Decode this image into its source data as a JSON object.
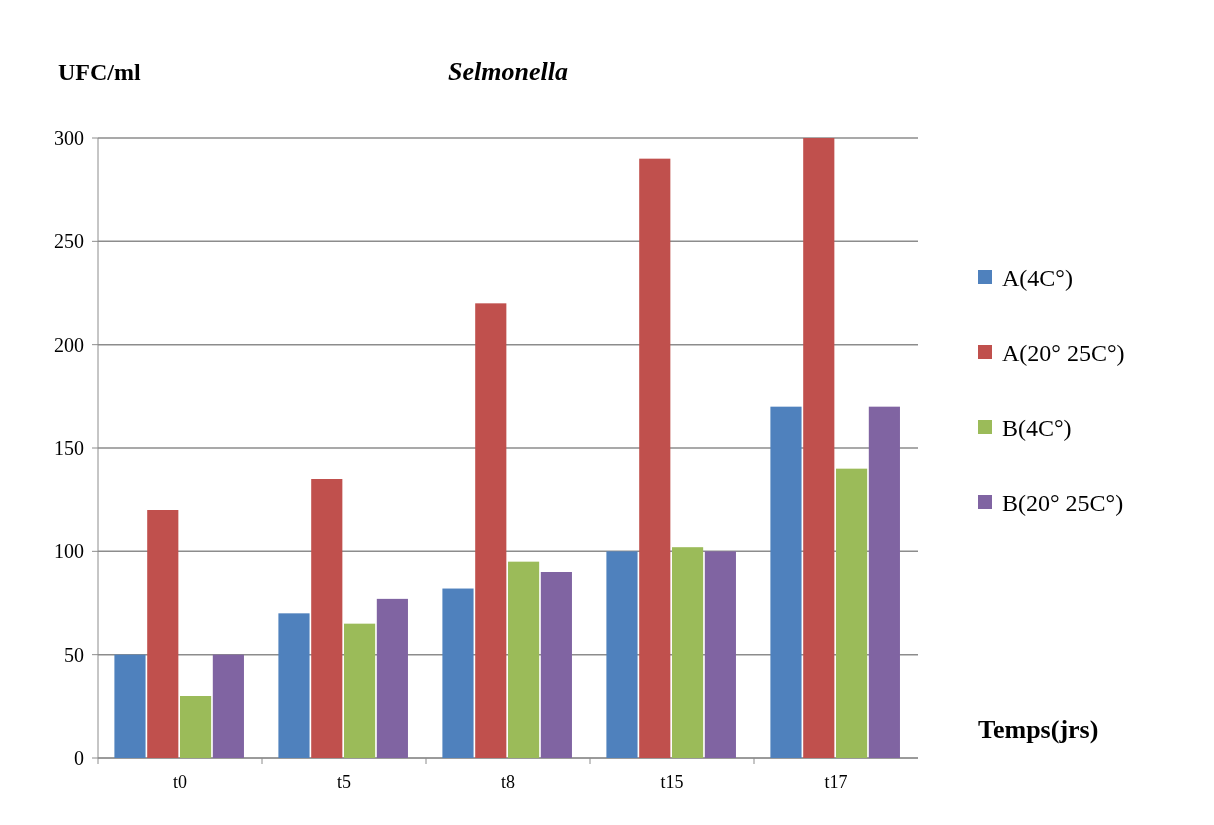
{
  "chart_data": {
    "type": "bar",
    "title": "Selmonella",
    "ylabel": "UFC/ml",
    "xlabel": "Temps(jrs)",
    "categories": [
      "t0",
      "t5",
      "t8",
      "t15",
      "t17"
    ],
    "series": [
      {
        "name": "A(4C°)",
        "color": "#4f81bd",
        "values": [
          50,
          70,
          82,
          100,
          170
        ]
      },
      {
        "name": "A(20° 25C°)",
        "color": "#c0504d",
        "values": [
          120,
          135,
          220,
          290,
          300
        ]
      },
      {
        "name": "B(4C°)",
        "color": "#9bbb59",
        "values": [
          30,
          65,
          95,
          102,
          140
        ]
      },
      {
        "name": "B(20° 25C°)",
        "color": "#8064a2",
        "values": [
          50,
          77,
          90,
          100,
          170
        ]
      }
    ],
    "ylim": [
      0,
      300
    ],
    "yticks": [
      0,
      50,
      100,
      150,
      200,
      250,
      300
    ],
    "grid": "y",
    "legend": "right"
  }
}
